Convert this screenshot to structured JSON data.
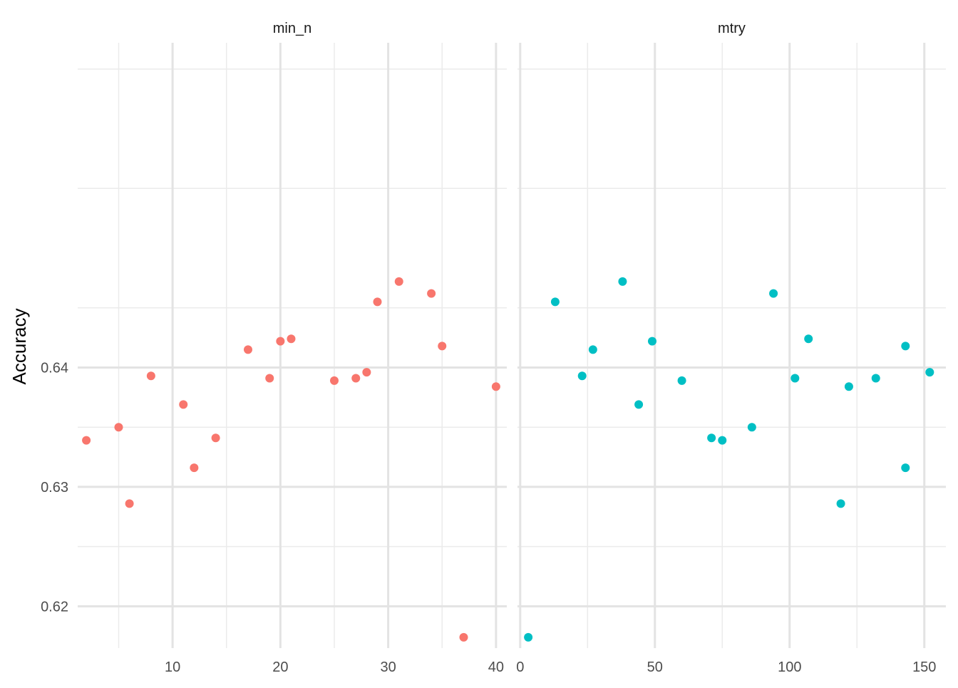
{
  "chart_data": {
    "type": "scatter",
    "ylabel": "Accuracy",
    "ylim": [
      0.6165,
      0.6672
    ],
    "y_ticks": [
      0.62,
      0.63,
      0.64
    ],
    "y_tick_labels": [
      "0.62",
      "0.63",
      "0.64"
    ],
    "grid": true,
    "facets": [
      {
        "name": "min_n",
        "color": "#F8766D",
        "xlim": [
          1.2,
          41.0
        ],
        "x_ticks": [
          10,
          20,
          30,
          40
        ],
        "x_tick_labels": [
          "10",
          "20",
          "30",
          "40"
        ],
        "points": [
          {
            "x": 2,
            "y": 0.6339
          },
          {
            "x": 5,
            "y": 0.635
          },
          {
            "x": 6,
            "y": 0.6286
          },
          {
            "x": 8,
            "y": 0.6393
          },
          {
            "x": 11,
            "y": 0.6369
          },
          {
            "x": 12,
            "y": 0.6316
          },
          {
            "x": 14,
            "y": 0.6341
          },
          {
            "x": 17,
            "y": 0.6415
          },
          {
            "x": 19,
            "y": 0.6391
          },
          {
            "x": 20,
            "y": 0.6422
          },
          {
            "x": 21,
            "y": 0.6424
          },
          {
            "x": 25,
            "y": 0.6389
          },
          {
            "x": 27,
            "y": 0.6391
          },
          {
            "x": 28,
            "y": 0.6396
          },
          {
            "x": 29,
            "y": 0.6455
          },
          {
            "x": 31,
            "y": 0.6472
          },
          {
            "x": 34,
            "y": 0.6462
          },
          {
            "x": 35,
            "y": 0.6418
          },
          {
            "x": 37,
            "y": 0.6174
          },
          {
            "x": 40,
            "y": 0.6384
          }
        ]
      },
      {
        "name": "mtry",
        "color": "#00BFC4",
        "xlim": [
          -1.0,
          158.0
        ],
        "x_ticks": [
          0,
          50,
          100,
          150
        ],
        "x_tick_labels": [
          "0",
          "50",
          "100",
          "150"
        ],
        "points": [
          {
            "x": 3,
            "y": 0.6174
          },
          {
            "x": 13,
            "y": 0.6455
          },
          {
            "x": 23,
            "y": 0.6393
          },
          {
            "x": 27,
            "y": 0.6415
          },
          {
            "x": 38,
            "y": 0.6472
          },
          {
            "x": 44,
            "y": 0.6369
          },
          {
            "x": 49,
            "y": 0.6422
          },
          {
            "x": 60,
            "y": 0.6389
          },
          {
            "x": 71,
            "y": 0.6341
          },
          {
            "x": 75,
            "y": 0.6339
          },
          {
            "x": 86,
            "y": 0.635
          },
          {
            "x": 94,
            "y": 0.6462
          },
          {
            "x": 102,
            "y": 0.6391
          },
          {
            "x": 107,
            "y": 0.6424
          },
          {
            "x": 119,
            "y": 0.6286
          },
          {
            "x": 122,
            "y": 0.6384
          },
          {
            "x": 132,
            "y": 0.6391
          },
          {
            "x": 143,
            "y": 0.6316
          },
          {
            "x": 143,
            "y": 0.6418
          },
          {
            "x": 152,
            "y": 0.6396
          }
        ]
      }
    ]
  }
}
